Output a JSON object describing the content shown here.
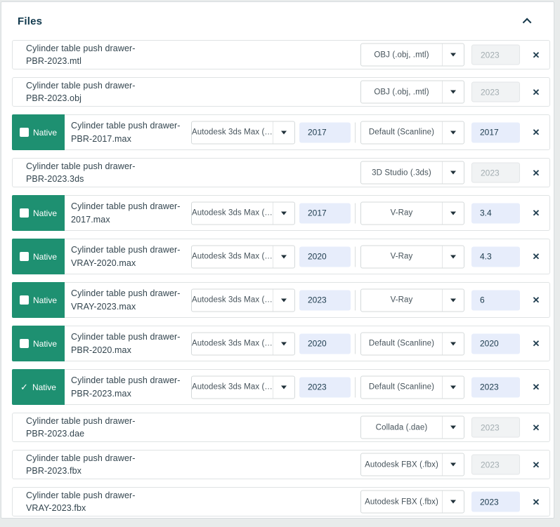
{
  "panel": {
    "title": "Files",
    "collapse_icon": "chevron-up"
  },
  "colors": {
    "native_green": "#1e9071",
    "editable_input_bg": "#e7edfb",
    "disabled_input_bg": "#f1f3f4",
    "title_color": "#123a4e",
    "page_background": "#e8ebeb"
  },
  "native_label": "Native",
  "files": {
    "rows": [
      {
        "filename": "Cylinder table push drawer-PBR-2023.mtl",
        "format": {
          "label": "OBJ (.obj, .mtl)"
        },
        "format_version": {
          "value": "2023",
          "editable": false
        }
      },
      {
        "filename": "Cylinder table push drawer-PBR-2023.obj",
        "format": {
          "label": "OBJ (.obj, .mtl)"
        },
        "format_version": {
          "value": "2023",
          "editable": false
        }
      },
      {
        "filename": "Cylinder table push drawer-PBR-2017.max",
        "native": {
          "checked": false
        },
        "format": {
          "label": "Autodesk 3ds Max (…"
        },
        "format_version": {
          "value": "2017",
          "editable": true
        },
        "renderer": {
          "label": "Default (Scanline)"
        },
        "renderer_version": {
          "value": "2017",
          "editable": true
        }
      },
      {
        "filename": "Cylinder table push drawer-PBR-2023.3ds",
        "format": {
          "label": "3D Studio (.3ds)"
        },
        "format_version": {
          "value": "2023",
          "editable": false
        }
      },
      {
        "filename": "Cylinder table push drawer-2017.max",
        "native": {
          "checked": false
        },
        "format": {
          "label": "Autodesk 3ds Max (…"
        },
        "format_version": {
          "value": "2017",
          "editable": true
        },
        "renderer": {
          "label": "V-Ray"
        },
        "renderer_version": {
          "value": "3.4",
          "editable": true
        }
      },
      {
        "filename": "Cylinder table push drawer-VRAY-2020.max",
        "native": {
          "checked": false
        },
        "format": {
          "label": "Autodesk 3ds Max (…"
        },
        "format_version": {
          "value": "2020",
          "editable": true
        },
        "renderer": {
          "label": "V-Ray"
        },
        "renderer_version": {
          "value": "4.3",
          "editable": true
        }
      },
      {
        "filename": "Cylinder table push drawer-VRAY-2023.max",
        "native": {
          "checked": false
        },
        "format": {
          "label": "Autodesk 3ds Max (…"
        },
        "format_version": {
          "value": "2023",
          "editable": true
        },
        "renderer": {
          "label": "V-Ray"
        },
        "renderer_version": {
          "value": "6",
          "editable": true
        }
      },
      {
        "filename": "Cylinder table push drawer-PBR-2020.max",
        "native": {
          "checked": false
        },
        "format": {
          "label": "Autodesk 3ds Max (…"
        },
        "format_version": {
          "value": "2020",
          "editable": true
        },
        "renderer": {
          "label": "Default (Scanline)"
        },
        "renderer_version": {
          "value": "2020",
          "editable": true
        }
      },
      {
        "filename": "Cylinder table push drawer-PBR-2023.max",
        "native": {
          "checked": true
        },
        "format": {
          "label": "Autodesk 3ds Max (…"
        },
        "format_version": {
          "value": "2023",
          "editable": true
        },
        "renderer": {
          "label": "Default (Scanline)"
        },
        "renderer_version": {
          "value": "2023",
          "editable": true
        }
      },
      {
        "filename": "Cylinder table push drawer-PBR-2023.dae",
        "format": {
          "label": "Collada (.dae)"
        },
        "format_version": {
          "value": "2023",
          "editable": false
        }
      },
      {
        "filename": "Cylinder table push drawer-PBR-2023.fbx",
        "format": {
          "label": "Autodesk FBX (.fbx)"
        },
        "format_version": {
          "value": "2023",
          "editable": false
        }
      },
      {
        "filename": "Cylinder table push drawer-VRAY-2023.fbx",
        "format": {
          "label": "Autodesk FBX (.fbx)"
        },
        "format_version": {
          "value": "2023",
          "editable": true
        }
      }
    ]
  }
}
